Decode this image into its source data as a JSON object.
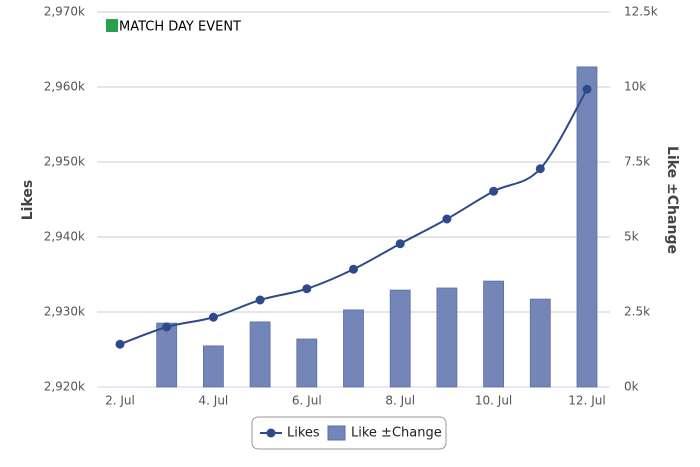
{
  "chart_data": {
    "type": "bar-line",
    "annotation": "MATCH DAY EVENT",
    "annotation_color": "#2ca04a",
    "ylabel": "Likes",
    "y2label": "Like ±Change",
    "categories": [
      "2. Jul",
      null,
      "4. Jul",
      null,
      "6. Jul",
      null,
      "8. Jul",
      null,
      "10. Jul",
      null,
      "12. Jul"
    ],
    "series": [
      {
        "name": "Likes",
        "type": "line",
        "color": "#2e4a8a",
        "values": [
          2925700,
          2928000,
          2929300,
          2931600,
          2933100,
          2935700,
          2939100,
          2942400,
          2946100,
          2949100,
          2959700
        ]
      },
      {
        "name": "Like ±Change",
        "type": "bar",
        "axis": "y2",
        "color": "#7486b8",
        "values": [
          null,
          2130,
          1370,
          2170,
          1600,
          2570,
          3230,
          3300,
          3530,
          2930,
          10670
        ]
      }
    ],
    "ylim": [
      2920000,
      2970000
    ],
    "yticks": [
      {
        "value": 2920000,
        "label": "2,920k"
      },
      {
        "value": 2930000,
        "label": "2,930k"
      },
      {
        "value": 2940000,
        "label": "2,940k"
      },
      {
        "value": 2950000,
        "label": "2,950k"
      },
      {
        "value": 2960000,
        "label": "2,960k"
      },
      {
        "value": 2970000,
        "label": "2,970k"
      }
    ],
    "y2lim": [
      0,
      12500
    ],
    "y2ticks": [
      {
        "value": 0,
        "label": "0k"
      },
      {
        "value": 2500,
        "label": "2.5k"
      },
      {
        "value": 5000,
        "label": "5k"
      },
      {
        "value": 7500,
        "label": "7.5k"
      },
      {
        "value": 10000,
        "label": "10k"
      },
      {
        "value": 12500,
        "label": "12.5k"
      }
    ],
    "grid": true
  }
}
